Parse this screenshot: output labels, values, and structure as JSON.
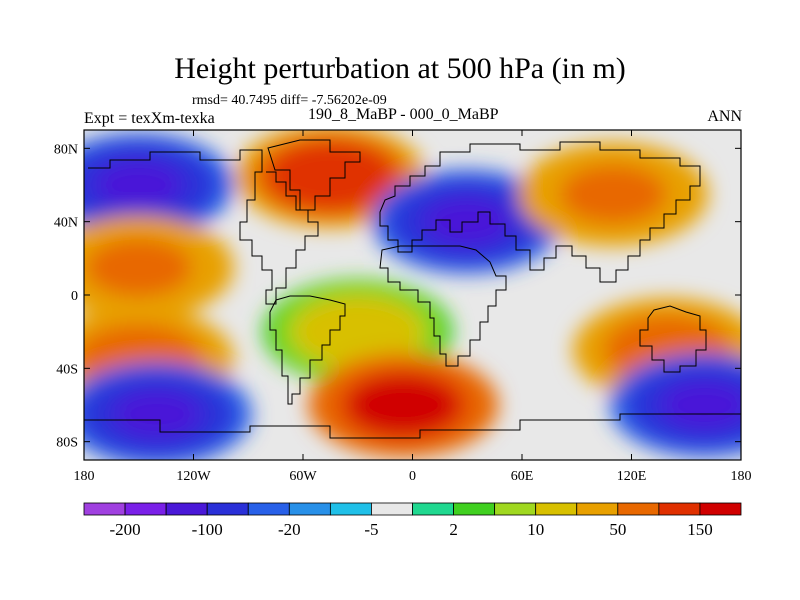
{
  "chart_data": {
    "type": "contour-map",
    "title": "Height perturbation at 500 hPa (in m)",
    "stats_text": "rmsd= 40.7495 diff= -7.56202e-09",
    "experiment_label": "Expt = texXm-texka",
    "case_label": "190_8_MaBP - 000_0_MaBP",
    "season_label": "ANN",
    "xlim": [
      -180,
      180
    ],
    "ylim": [
      -90,
      90
    ],
    "x_ticks": [
      {
        "value": -180,
        "label": "180"
      },
      {
        "value": -120,
        "label": "120W"
      },
      {
        "value": -60,
        "label": "60W"
      },
      {
        "value": 0,
        "label": "0"
      },
      {
        "value": 60,
        "label": "60E"
      },
      {
        "value": 120,
        "label": "120E"
      },
      {
        "value": 180,
        "label": "180"
      }
    ],
    "y_ticks": [
      {
        "value": 80,
        "label": "80N"
      },
      {
        "value": 40,
        "label": "40N"
      },
      {
        "value": 0,
        "label": "0"
      },
      {
        "value": -40,
        "label": "40S"
      },
      {
        "value": -80,
        "label": "80S"
      }
    ],
    "colorbar": {
      "colors": [
        "#a040e0",
        "#7a20e8",
        "#4a18d8",
        "#2a30d8",
        "#2860e8",
        "#2890e8",
        "#20c0e8",
        "#e8e8e8",
        "#20d890",
        "#40d020",
        "#a0d820",
        "#d8c000",
        "#e8a000",
        "#e86800",
        "#e03000",
        "#d00000"
      ],
      "labels": [
        {
          "after_box": 1,
          "text": "-200"
        },
        {
          "after_box": 3,
          "text": "-100"
        },
        {
          "after_box": 5,
          "text": "-20"
        },
        {
          "after_box": 7,
          "text": "-5"
        },
        {
          "after_box": 9,
          "text": "2"
        },
        {
          "after_box": 11,
          "text": "10"
        },
        {
          "after_box": 13,
          "text": "50"
        },
        {
          "after_box": 15,
          "text": "150"
        }
      ]
    },
    "field": [
      {
        "lon": -150,
        "lat": 60,
        "value": -120
      },
      {
        "lon": -45,
        "lat": 65,
        "value": 150
      },
      {
        "lon": 30,
        "lat": 40,
        "value": -120
      },
      {
        "lon": 110,
        "lat": 55,
        "value": 70
      },
      {
        "lon": -150,
        "lat": 15,
        "value": 70
      },
      {
        "lon": -30,
        "lat": -20,
        "value": 15
      },
      {
        "lon": -150,
        "lat": -35,
        "value": 80
      },
      {
        "lon": -5,
        "lat": -60,
        "value": 190
      },
      {
        "lon": -140,
        "lat": -65,
        "value": -110
      },
      {
        "lon": 140,
        "lat": -30,
        "value": 90
      },
      {
        "lon": 160,
        "lat": -60,
        "value": -110
      }
    ]
  }
}
